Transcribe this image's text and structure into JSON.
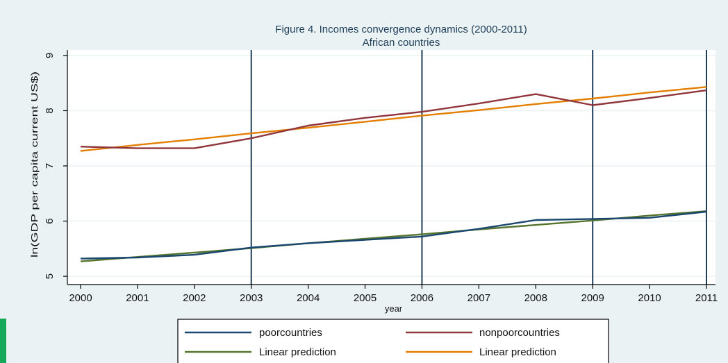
{
  "chart_data": {
    "type": "line",
    "title": "Figure 4. Incomes convergence dynamics (2000-2011)",
    "subtitle": "African countries",
    "xlabel": "year",
    "ylabel": "ln(GDP per capita current US$)",
    "x": [
      2000,
      2001,
      2002,
      2003,
      2004,
      2005,
      2006,
      2007,
      2008,
      2009,
      2010,
      2011
    ],
    "xlim": [
      2000,
      2011
    ],
    "ylim": [
      4.85,
      9.1
    ],
    "yticks": [
      5,
      6,
      7,
      8,
      9
    ],
    "xticks": [
      2000,
      2001,
      2002,
      2003,
      2004,
      2005,
      2006,
      2007,
      2008,
      2009,
      2010,
      2011
    ],
    "vlines": [
      2003,
      2006,
      2009,
      2011
    ],
    "grid": "horizontal",
    "legend_position": "bottom",
    "series": [
      {
        "name": "poorcountries",
        "color": "#1a476f",
        "values": [
          5.32,
          5.34,
          5.39,
          5.52,
          5.6,
          5.66,
          5.72,
          5.86,
          6.02,
          6.04,
          6.06,
          6.17
        ]
      },
      {
        "name": "nonpoorcountries",
        "color": "#90353b",
        "values": [
          7.35,
          7.32,
          7.32,
          7.5,
          7.73,
          7.87,
          7.98,
          8.13,
          8.3,
          8.1,
          8.23,
          8.37
        ]
      },
      {
        "name": "Linear prediction",
        "color": "#55752f",
        "values": [
          5.27,
          5.35,
          5.43,
          5.51,
          5.6,
          5.68,
          5.76,
          5.85,
          5.93,
          6.01,
          6.1,
          6.18
        ]
      },
      {
        "name": "Linear prediction",
        "color": "#e37e00",
        "values": [
          7.27,
          7.38,
          7.48,
          7.59,
          7.69,
          7.8,
          7.91,
          8.01,
          8.12,
          8.22,
          8.33,
          8.43
        ]
      }
    ]
  },
  "colors": {
    "background": "#eaf2f3",
    "plot_area": "#ffffff",
    "grid": "#eaf2f3",
    "vline": "#1e3f5a",
    "corner_mark": "#17a95a"
  }
}
